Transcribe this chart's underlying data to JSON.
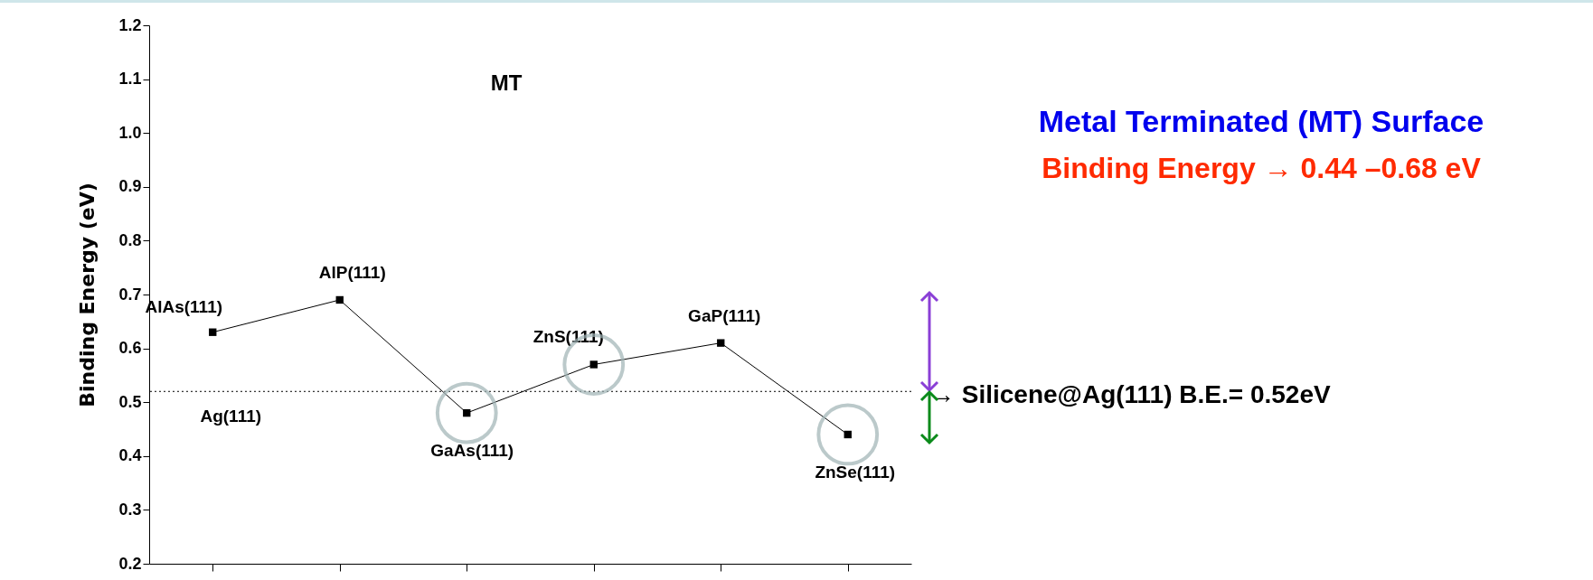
{
  "chart_data": {
    "type": "line",
    "categories": [
      "AlAs(111)",
      "AlP(111)",
      "GaAs(111)",
      "ZnS(111)",
      "GaP(111)",
      "ZnSe(111)"
    ],
    "series": [
      {
        "color": "#000000",
        "values": [
          0.63,
          0.69,
          0.48,
          0.57,
          0.61,
          0.44
        ]
      }
    ],
    "ylabel": "Binding Energy (eV)",
    "ylim": [
      0.2,
      1.2
    ],
    "yticks": [
      0.2,
      0.3,
      0.4,
      0.5,
      0.6,
      0.7,
      0.8,
      0.9,
      {
        "value": 1,
        "label": "1.0"
      },
      1.1,
      1.2
    ],
    "tick_labels": "y",
    "marker": "square",
    "line_style": "solid",
    "ref_lines": [
      {
        "axis": "y",
        "value": 0.52,
        "label": "Ag(111)",
        "line_style": "dotted",
        "color": "#000000"
      }
    ],
    "annotations": [
      "MT",
      "Metal Terminated (MT) Surface",
      "Binding Energy → 0.44 –0.68 eV",
      "→ Silicene@Ag(111) B.E.= 0.52eV"
    ]
  }
}
